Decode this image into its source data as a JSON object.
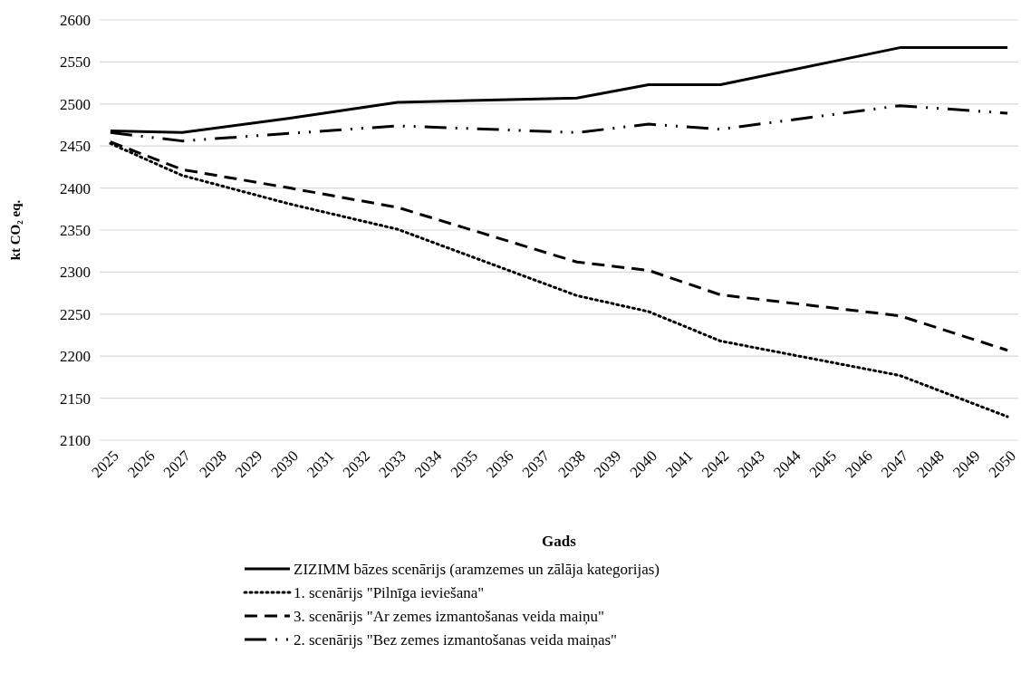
{
  "chart_data": {
    "type": "line",
    "ylabel": "kt CO₂ eq.",
    "xlabel": "Gads",
    "xlim": [
      2024.7,
      2050.3
    ],
    "xticks": [
      2025,
      2026,
      2027,
      2028,
      2029,
      2030,
      2031,
      2032,
      2033,
      2034,
      2035,
      2036,
      2037,
      2038,
      2039,
      2040,
      2041,
      2042,
      2043,
      2044,
      2045,
      2046,
      2047,
      2048,
      2049,
      2050
    ],
    "ylim": [
      2100,
      2600
    ],
    "yticks": [
      2100,
      2150,
      2200,
      2250,
      2300,
      2350,
      2400,
      2450,
      2500,
      2550,
      2600
    ],
    "grid": "y",
    "legend": "bottom",
    "series": [
      {
        "name": "ZIZIMM bāzes scenārijs (aramzemes un zālāja kategorijas)",
        "color": "#000000",
        "line_style": "solid",
        "x": [
          2025,
          2027,
          2030,
          2033,
          2038,
          2040,
          2042,
          2047,
          2050
        ],
        "values": [
          2468,
          2466,
          2483,
          2502,
          2507,
          2523,
          2523,
          2567,
          2567
        ]
      },
      {
        "name": "1. scenārijs \"Pilnīga ieviešana\"",
        "color": "#000000",
        "line_style": "dotted",
        "x": [
          2025,
          2027,
          2030,
          2033,
          2038,
          2040,
          2042,
          2047,
          2050
        ],
        "values": [
          2453,
          2415,
          2381,
          2351,
          2272,
          2253,
          2218,
          2177,
          2128
        ]
      },
      {
        "name": "3. scenārijs \"Ar zemes izmantošanas veida maiņu\"",
        "color": "#000000",
        "line_style": "dashed",
        "x": [
          2025,
          2027,
          2030,
          2033,
          2038,
          2040,
          2042,
          2047,
          2050
        ],
        "values": [
          2455,
          2422,
          2400,
          2377,
          2312,
          2302,
          2273,
          2248,
          2207
        ]
      },
      {
        "name": "2. scenārijs \"Bez zemes izmantošanas veida maiņas\"",
        "color": "#000000",
        "line_style": "dashdot",
        "x": [
          2025,
          2027,
          2030,
          2033,
          2038,
          2040,
          2042,
          2047,
          2050
        ],
        "values": [
          2466,
          2456,
          2465,
          2474,
          2466,
          2476,
          2470,
          2498,
          2489
        ]
      }
    ]
  }
}
